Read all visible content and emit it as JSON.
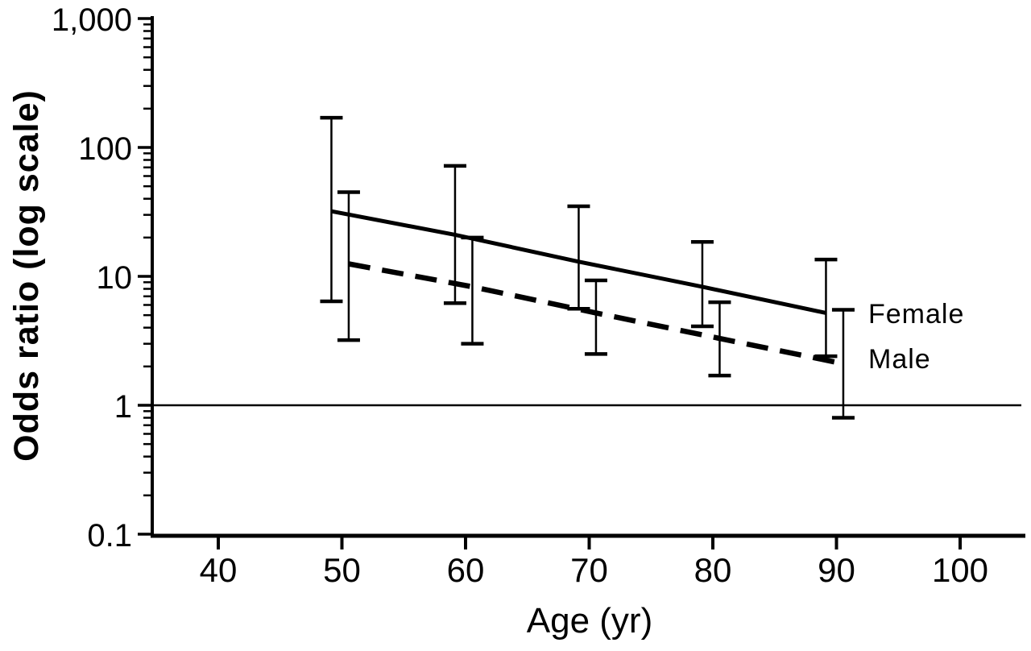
{
  "figure": {
    "background": "#ffffff",
    "ink_color": "#000000"
  },
  "chart_data": {
    "type": "line",
    "title": "",
    "xlabel": "Age (yr)",
    "ylabel": "Odds ratio (log scale)",
    "y_scale": "log",
    "xlim": [
      34.5,
      105
    ],
    "ylim": [
      0.1,
      1000
    ],
    "grid": false,
    "x_ticks": [
      40,
      50,
      60,
      70,
      80,
      90,
      100
    ],
    "y_tick_values": [
      1000,
      100,
      10,
      1,
      0.1
    ],
    "y_tick_labels": [
      "1,000",
      "100",
      "10",
      "1",
      "0.1"
    ],
    "reference_line_y": 1,
    "legend_position": "right of line ends, inside plot",
    "error_bar_style": "T-capped confidence intervals, pairs horizontally staggered at each decade of age",
    "series": [
      {
        "name": "Female",
        "line_style": "solid",
        "ages": [
          50,
          60,
          70,
          80,
          90
        ],
        "odds_ratio": [
          32,
          21,
          13,
          8.3,
          5.2
        ],
        "ci_low": [
          6.4,
          6.2,
          5.6,
          4.1,
          2.4
        ],
        "ci_high": [
          170,
          72,
          35,
          18.5,
          13.5
        ]
      },
      {
        "name": "Male",
        "line_style": "dashed",
        "ages": [
          50,
          60,
          70,
          80,
          90
        ],
        "odds_ratio": [
          12.5,
          8.3,
          5.2,
          3.3,
          2.1
        ],
        "ci_low": [
          3.2,
          3.0,
          2.5,
          1.7,
          0.8
        ],
        "ci_high": [
          45,
          20,
          9.3,
          6.3,
          5.5
        ]
      }
    ]
  }
}
